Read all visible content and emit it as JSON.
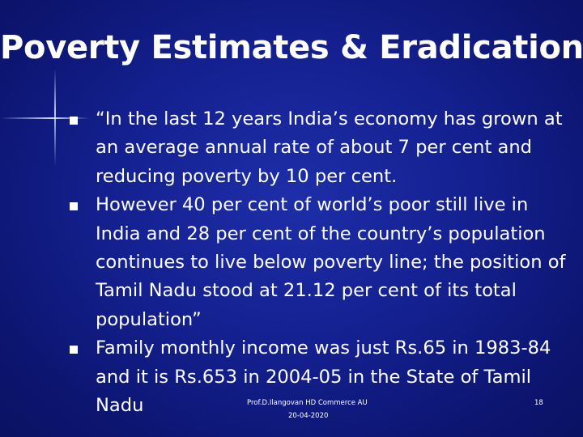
{
  "slide": {
    "title": "Poverty Estimates & Eradication",
    "bullets": [
      {
        "text": "“In the last 12 years India’s economy has grown at an average annual rate of about 7 per cent and reducing poverty by 10 per cent."
      },
      {
        "text": "However 40 per cent of world’s poor still live in India and 28 per cent of the country’s population continues to live below poverty line; the position of Tamil Nadu stood at 21.12 per cent of its total population”"
      },
      {
        "text": "Family monthly income was just Rs.65 in 1983-84 and it is Rs.653 in 2004-05 in the State of Tamil Nadu"
      }
    ],
    "footer": {
      "author": "Prof.D.Ilangovan HD Commerce AU",
      "date": "20-04-2020",
      "page_number": "18"
    }
  },
  "colors": {
    "background": "#14208f",
    "text": "#ffffff"
  }
}
